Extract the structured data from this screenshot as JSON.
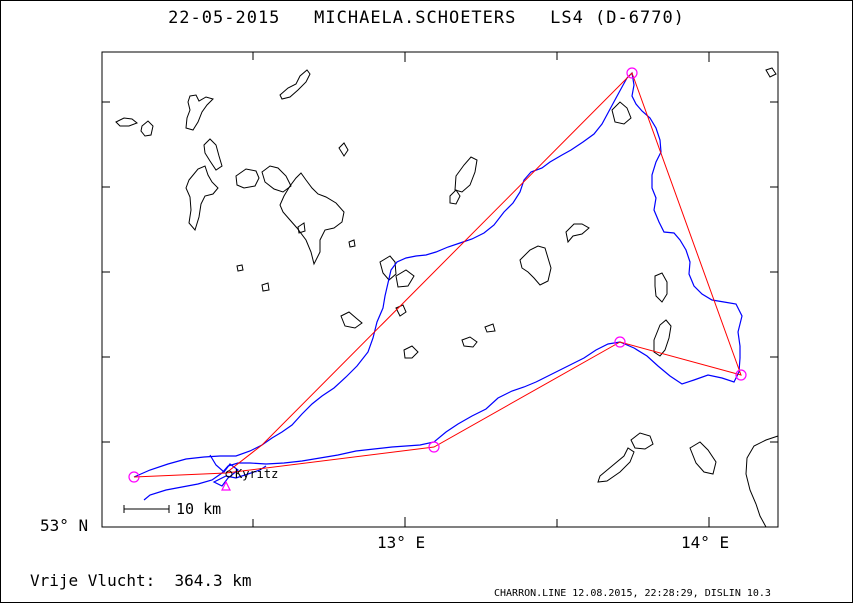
{
  "header": {
    "date": "22-05-2015",
    "pilot": "MICHAELA.SCHOETERS",
    "glider": "LS4 (D-6770)"
  },
  "axes": {
    "lat_label": "53° N",
    "lon_labels": [
      "13° E",
      "14° E"
    ]
  },
  "map": {
    "town_label": "Kyritz",
    "scale_label": "10 km",
    "task_color": "#ff0000",
    "track_color": "#0000ff",
    "turnpoint_color": "#ff00ff"
  },
  "footer": {
    "flight_label": "Vrije Vlucht:",
    "flight_distance": "364.3 km",
    "program_info": "CHARRON.LINE 12.08.2015, 22:28:29, DISLIN 10.3"
  }
}
